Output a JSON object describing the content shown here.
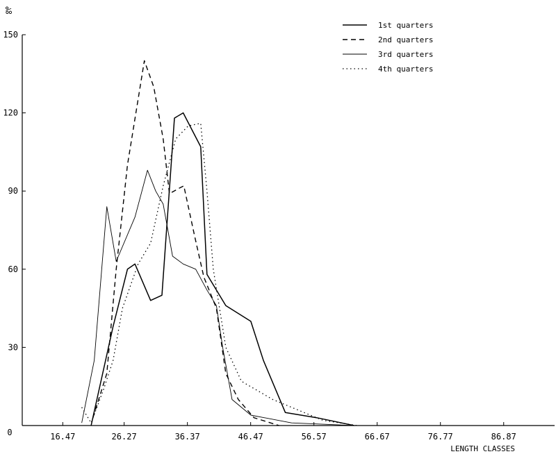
{
  "chart_data": {
    "type": "line",
    "title": "",
    "ylabel": "‰",
    "xlabel": "LENGTH CLASSES",
    "ylim": [
      0,
      150
    ],
    "xlim": [
      10,
      95
    ],
    "xticks": [
      16.47,
      26.27,
      36.37,
      46.47,
      56.57,
      66.67,
      76.77,
      86.87
    ],
    "xtick_labels": [
      "16.47",
      "26.27",
      "36.37",
      "46.47",
      "56.57",
      "66.67",
      "76.77",
      "86.87"
    ],
    "yticks": [
      30,
      60,
      90,
      120,
      150
    ],
    "ytick_labels": [
      "30",
      "60",
      "90",
      "120",
      "150"
    ],
    "origin_label": "0",
    "grid": false,
    "legend_position": "top-right",
    "series": [
      {
        "name": "1st quarters",
        "dash": "solid",
        "stroke_width": 1.5,
        "points": [
          [
            21.0,
            0
          ],
          [
            24.5,
            38
          ],
          [
            26.8,
            60
          ],
          [
            28.0,
            62
          ],
          [
            30.5,
            48
          ],
          [
            32.3,
            50
          ],
          [
            34.3,
            118
          ],
          [
            35.7,
            120
          ],
          [
            38.5,
            107
          ],
          [
            39.5,
            58
          ],
          [
            42.5,
            46
          ],
          [
            46.5,
            40
          ],
          [
            48.5,
            25
          ],
          [
            52.0,
            5
          ],
          [
            57.0,
            3
          ],
          [
            63.0,
            0
          ]
        ]
      },
      {
        "name": "2nd quarters",
        "dash": "dashed",
        "stroke_width": 1.4,
        "points": [
          [
            21.3,
            3
          ],
          [
            23.5,
            20
          ],
          [
            25.0,
            60
          ],
          [
            26.8,
            100
          ],
          [
            29.5,
            140
          ],
          [
            31.0,
            130
          ],
          [
            32.5,
            110
          ],
          [
            33.5,
            89
          ],
          [
            35.0,
            91
          ],
          [
            35.8,
            92
          ],
          [
            37.5,
            73
          ],
          [
            39.0,
            57
          ],
          [
            41.0,
            45
          ],
          [
            42.5,
            20
          ],
          [
            44.5,
            10
          ],
          [
            47.0,
            3
          ],
          [
            51.0,
            0
          ]
        ]
      },
      {
        "name": "3rd quarters",
        "dash": "solid",
        "stroke_width": 0.9,
        "points": [
          [
            19.5,
            1
          ],
          [
            21.5,
            25
          ],
          [
            23.5,
            84
          ],
          [
            25.0,
            63
          ],
          [
            28.0,
            80
          ],
          [
            30.0,
            98
          ],
          [
            31.3,
            90
          ],
          [
            32.5,
            85
          ],
          [
            34.0,
            65
          ],
          [
            35.7,
            62
          ],
          [
            37.7,
            60
          ],
          [
            39.5,
            52
          ],
          [
            41.0,
            46
          ],
          [
            42.0,
            30
          ],
          [
            43.5,
            10
          ],
          [
            46.5,
            4
          ],
          [
            53.0,
            1
          ],
          [
            63.0,
            0
          ]
        ]
      },
      {
        "name": "4th quarters",
        "dash": "dotted",
        "stroke_width": 1.3,
        "points": [
          [
            19.5,
            7
          ],
          [
            21.0,
            1
          ],
          [
            23.0,
            14
          ],
          [
            24.5,
            25
          ],
          [
            26.0,
            45
          ],
          [
            28.5,
            62
          ],
          [
            30.5,
            70
          ],
          [
            32.5,
            92
          ],
          [
            34.5,
            110
          ],
          [
            36.5,
            115
          ],
          [
            38.5,
            116
          ],
          [
            39.5,
            90
          ],
          [
            40.5,
            60
          ],
          [
            42.5,
            30
          ],
          [
            45.0,
            17
          ],
          [
            50.0,
            10
          ],
          [
            54.0,
            6
          ],
          [
            58.0,
            2
          ],
          [
            63.5,
            0
          ]
        ]
      }
    ]
  }
}
